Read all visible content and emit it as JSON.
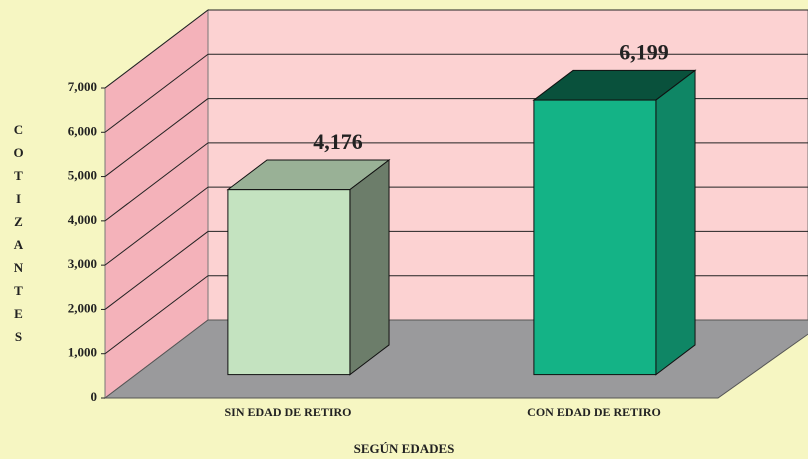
{
  "chart_data": {
    "type": "bar3d",
    "categories": [
      "SIN EDAD DE RETIRO",
      "CON EDAD DE RETIRO"
    ],
    "values": [
      4176,
      6199
    ],
    "value_labels": [
      "4,176",
      "6,199"
    ],
    "colors": [
      "#c4e3c0",
      "#14b386"
    ],
    "x_label": "SEGÚN EDADES",
    "y_label": "COTIZANTES",
    "ylim": [
      0,
      7000
    ],
    "yticks": [
      0,
      {
        "value": 1000,
        "label": "1,000"
      },
      {
        "value": 2000,
        "label": "2,000"
      },
      {
        "value": 3000,
        "label": "3,000"
      },
      {
        "value": 4000,
        "label": "4,000"
      },
      {
        "value": 5000,
        "label": "5,000"
      },
      {
        "value": 6000,
        "label": "6,000"
      },
      {
        "value": 7000,
        "label": "7,000"
      }
    ],
    "grid": true
  }
}
